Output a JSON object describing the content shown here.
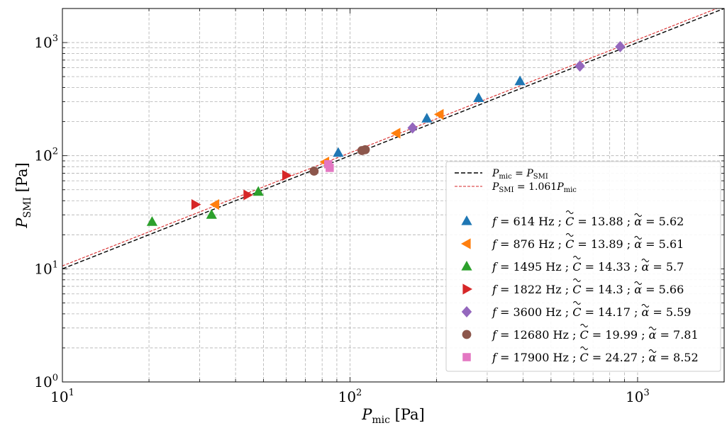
{
  "chart_data": {
    "type": "scatter",
    "xscale": "log",
    "yscale": "log",
    "xlim": [
      10,
      2000
    ],
    "ylim": [
      1,
      2000
    ],
    "grid": true,
    "legend_position": "lower-right",
    "xlabel": {
      "main": "P",
      "sub": "mic",
      "unit": " [Pa]"
    },
    "ylabel": {
      "main": "P",
      "sub": "SMI",
      "unit": " [Pa]"
    },
    "x_ticks": [
      {
        "value": 10,
        "base": "10",
        "exp": "1"
      },
      {
        "value": 100,
        "base": "10",
        "exp": "2"
      },
      {
        "value": 1000,
        "base": "10",
        "exp": "3"
      }
    ],
    "y_ticks": [
      {
        "value": 1,
        "base": "10",
        "exp": "0"
      },
      {
        "value": 10,
        "base": "10",
        "exp": "1"
      },
      {
        "value": 100,
        "base": "10",
        "exp": "2"
      },
      {
        "value": 1000,
        "base": "10",
        "exp": "3"
      }
    ],
    "lines": [
      {
        "slope": 1.0,
        "color": "#000000",
        "style": "dashed",
        "label": {
          "lhs": "P",
          "lhs_sub": "mic",
          "rhs": "P",
          "rhs_sub": "SMI",
          "coef": ""
        }
      },
      {
        "slope": 1.061,
        "color": "#d62728",
        "style": "dashed",
        "label": {
          "lhs": "P",
          "lhs_sub": "SMI",
          "rhs": "P",
          "rhs_sub": "mic",
          "coef": "1.061"
        }
      }
    ],
    "series": [
      {
        "marker": "triangle-up",
        "color": "#1f77b4",
        "label": {
          "f": "614",
          "C": "13.88",
          "alpha": "5.62"
        },
        "points": [
          [
            91,
            106
          ],
          [
            185,
            213
          ],
          [
            280,
            323
          ],
          [
            390,
            455
          ]
        ]
      },
      {
        "marker": "triangle-left",
        "color": "#ff7f0e",
        "label": {
          "f": "876",
          "C": "13.89",
          "alpha": "5.61"
        },
        "points": [
          [
            34,
            37
          ],
          [
            82,
            88
          ],
          [
            145,
            158
          ],
          [
            205,
            232
          ]
        ]
      },
      {
        "marker": "triangle-up",
        "color": "#2ca02c",
        "label": {
          "f": "1495",
          "C": "14.33",
          "alpha": "5.7"
        },
        "points": [
          [
            20.5,
            26
          ],
          [
            33,
            30
          ],
          [
            48,
            48
          ]
        ]
      },
      {
        "marker": "triangle-right",
        "color": "#d62728",
        "label": {
          "f": "1822",
          "C": "14.3",
          "alpha": "5.66"
        },
        "points": [
          [
            29,
            37
          ],
          [
            44,
            45
          ],
          [
            60,
            67
          ]
        ]
      },
      {
        "marker": "diamond",
        "color": "#9467bd",
        "label": {
          "f": "3600",
          "C": "14.17",
          "alpha": "5.59"
        },
        "points": [
          [
            165,
            176
          ],
          [
            630,
            620
          ],
          [
            870,
            920
          ]
        ]
      },
      {
        "marker": "circle",
        "color": "#8c564b",
        "label": {
          "f": "12680",
          "C": "19.99",
          "alpha": "7.81"
        },
        "points": [
          [
            75,
            73
          ],
          [
            110,
            111
          ],
          [
            113,
            113
          ]
        ]
      },
      {
        "marker": "square",
        "color": "#e377c2",
        "label": {
          "f": "17900",
          "C": "24.27",
          "alpha": "8.52"
        },
        "points": [
          [
            84,
            84
          ],
          [
            85,
            78
          ]
        ]
      }
    ],
    "legend_units": {
      "hz": " Hz",
      "sep": " ; "
    }
  }
}
